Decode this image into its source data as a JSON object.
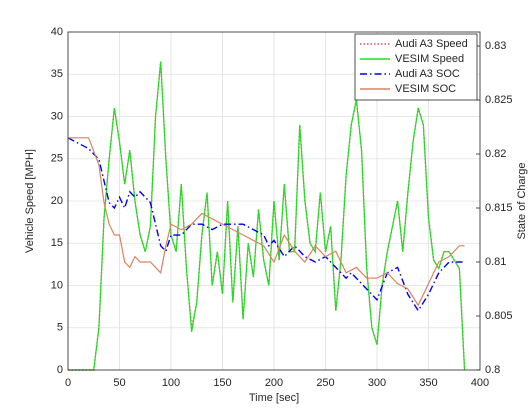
{
  "chart_data": {
    "type": "line",
    "xlabel": "Time [sec]",
    "ylabel": "Vehicle Speed [MPH]",
    "y2label": "State of Charge",
    "xlim": [
      0,
      400
    ],
    "xticks": [
      0,
      50,
      100,
      150,
      200,
      250,
      300,
      350,
      400
    ],
    "ylim": [
      0,
      40
    ],
    "yticks": [
      0,
      5,
      10,
      15,
      20,
      25,
      30,
      35,
      40
    ],
    "y2lim": [
      0.8,
      0.8313
    ],
    "y2ticks": [
      0.8,
      0.805,
      0.81,
      0.815,
      0.82,
      0.825,
      0.83
    ],
    "grid": true,
    "legend": "upper right",
    "series": [
      {
        "name": "Audi A3 Speed",
        "color": "#d9534f",
        "dash": "dotted",
        "x": [
          0,
          25,
          30,
          35,
          40,
          45,
          50,
          55,
          60,
          65,
          70,
          75,
          80,
          85,
          90,
          95,
          100,
          105,
          110,
          115,
          120,
          125,
          130,
          135,
          140,
          145,
          150,
          155,
          160,
          165,
          170,
          175,
          180,
          185,
          190,
          195,
          200,
          205,
          210,
          215,
          220,
          225,
          230,
          235,
          240,
          245,
          250,
          255,
          260,
          265,
          270,
          275,
          280,
          285,
          290,
          295,
          300,
          305,
          310,
          315,
          320,
          325,
          330,
          335,
          340,
          345,
          350,
          355,
          360,
          365,
          370,
          375,
          380,
          385
        ],
        "values": [
          0,
          0,
          5,
          18,
          25,
          31,
          27,
          22,
          26,
          20,
          16,
          14,
          17,
          30,
          36.5,
          25,
          16,
          14,
          22,
          12,
          5,
          8,
          16,
          21,
          10,
          14,
          9,
          20,
          8,
          17,
          6,
          15,
          11,
          19,
          13,
          10,
          20,
          13,
          22,
          14,
          14,
          29,
          20,
          15,
          14,
          21,
          14,
          17,
          7,
          13,
          23,
          29,
          32,
          26,
          12,
          5,
          3,
          10,
          14,
          17,
          20,
          14,
          21,
          27,
          31,
          29,
          18,
          13,
          12,
          14,
          14,
          13,
          12,
          0
        ]
      },
      {
        "name": "VESIM Speed",
        "color": "#22dd22",
        "dash": "solid",
        "x": [
          0,
          25,
          30,
          35,
          40,
          45,
          50,
          55,
          60,
          65,
          70,
          75,
          80,
          85,
          90,
          95,
          100,
          105,
          110,
          115,
          120,
          125,
          130,
          135,
          140,
          145,
          150,
          155,
          160,
          165,
          170,
          175,
          180,
          185,
          190,
          195,
          200,
          205,
          210,
          215,
          220,
          225,
          230,
          235,
          240,
          245,
          250,
          255,
          260,
          265,
          270,
          275,
          280,
          285,
          290,
          295,
          300,
          305,
          310,
          315,
          320,
          325,
          330,
          335,
          340,
          345,
          350,
          355,
          360,
          365,
          370,
          375,
          380,
          385
        ],
        "values": [
          0,
          0,
          5,
          18,
          25,
          31,
          27,
          22,
          26,
          20,
          16,
          14,
          17,
          30,
          36.5,
          25,
          16,
          14,
          22,
          12,
          4.5,
          8,
          16,
          21,
          10,
          14,
          9,
          20,
          8,
          17,
          6,
          15,
          11,
          19,
          13,
          10,
          20,
          13,
          22,
          14,
          14,
          29,
          20,
          15,
          14,
          21,
          14,
          17,
          7,
          13,
          23,
          29,
          32,
          26,
          12,
          5,
          3,
          10,
          14,
          17,
          20,
          14,
          21,
          27,
          31,
          29,
          18,
          13,
          12,
          14,
          14,
          13,
          12,
          0
        ]
      },
      {
        "name": "Audi A3 SOC",
        "color": "#0000ee",
        "dash": "dashdot",
        "axis": "y2",
        "x": [
          0,
          20,
          30,
          40,
          45,
          50,
          55,
          60,
          65,
          70,
          80,
          90,
          95,
          100,
          110,
          120,
          130,
          140,
          150,
          160,
          170,
          180,
          190,
          195,
          200,
          210,
          220,
          230,
          240,
          250,
          260,
          270,
          275,
          280,
          290,
          300,
          310,
          320,
          330,
          340,
          350,
          360,
          370,
          380,
          383
        ],
        "values": [
          0.8215,
          0.8205,
          0.8195,
          0.8155,
          0.815,
          0.816,
          0.815,
          0.8165,
          0.816,
          0.8165,
          0.8155,
          0.8115,
          0.811,
          0.8125,
          0.8125,
          0.8135,
          0.8135,
          0.813,
          0.8135,
          0.8135,
          0.8135,
          0.813,
          0.8125,
          0.8115,
          0.812,
          0.8105,
          0.8115,
          0.8105,
          0.81,
          0.8105,
          0.8095,
          0.8085,
          0.809,
          0.8085,
          0.8075,
          0.8065,
          0.809,
          0.8095,
          0.807,
          0.8055,
          0.807,
          0.809,
          0.81,
          0.81,
          0.81
        ]
      },
      {
        "name": "VESIM SOC",
        "color": "#d9835f",
        "dash": "solid",
        "axis": "y2",
        "x": [
          0,
          20,
          30,
          35,
          40,
          45,
          50,
          55,
          60,
          65,
          70,
          80,
          90,
          95,
          100,
          110,
          120,
          130,
          140,
          150,
          160,
          170,
          180,
          190,
          200,
          210,
          220,
          230,
          240,
          250,
          260,
          270,
          280,
          290,
          300,
          310,
          320,
          330,
          340,
          350,
          360,
          370,
          380,
          385
        ],
        "values": [
          0.8215,
          0.8215,
          0.819,
          0.8155,
          0.8135,
          0.8125,
          0.8125,
          0.81,
          0.8095,
          0.8105,
          0.81,
          0.81,
          0.809,
          0.8115,
          0.8135,
          0.813,
          0.8135,
          0.8145,
          0.814,
          0.8135,
          0.813,
          0.8125,
          0.812,
          0.8115,
          0.81,
          0.8125,
          0.811,
          0.81,
          0.8115,
          0.8105,
          0.811,
          0.809,
          0.8095,
          0.8085,
          0.8085,
          0.809,
          0.808,
          0.8075,
          0.806,
          0.808,
          0.81,
          0.8105,
          0.8115,
          0.8115
        ]
      }
    ]
  }
}
